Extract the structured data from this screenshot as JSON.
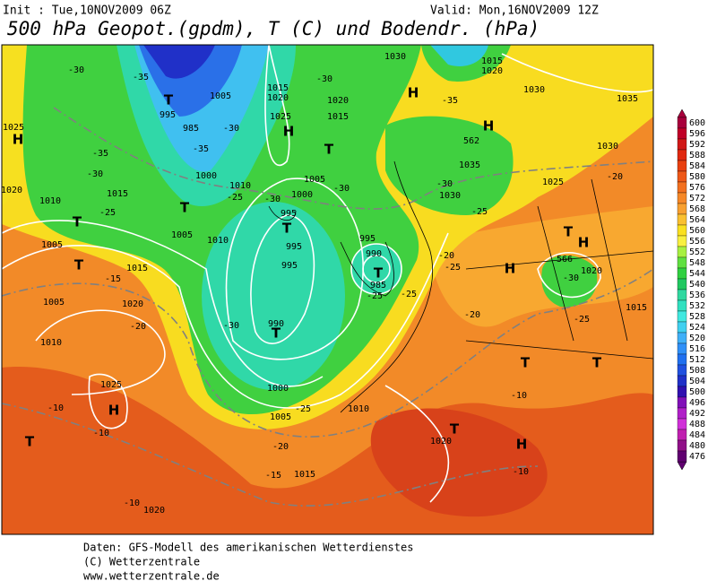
{
  "header": {
    "init": "Init : Tue,10NOV2009 06Z",
    "valid": "Valid: Mon,16NOV2009 12Z",
    "title": "500 hPa Geopot.(gpdm), T (C) und Bodendr. (hPa)"
  },
  "colorbar": {
    "levels": [
      600,
      596,
      592,
      588,
      584,
      580,
      576,
      572,
      568,
      564,
      560,
      556,
      552,
      548,
      544,
      540,
      536,
      532,
      528,
      524,
      520,
      516,
      512,
      508,
      504,
      500,
      496,
      492,
      488,
      484,
      480,
      476
    ],
    "colors": [
      "#a8003c",
      "#c00028",
      "#d01818",
      "#e02810",
      "#e84010",
      "#ee5818",
      "#f27020",
      "#f68828",
      "#f8a030",
      "#fac030",
      "#fae020",
      "#f8f040",
      "#a8f040",
      "#60e040",
      "#30d040",
      "#20c860",
      "#30d8a0",
      "#30e0c0",
      "#40e8e0",
      "#40d0f0",
      "#40b0f8",
      "#3090f8",
      "#2070f0",
      "#2050e0",
      "#2030c8",
      "#3010b0",
      "#8010b8",
      "#b020c8",
      "#d030d8",
      "#c020b0",
      "#901088",
      "#600070"
    ]
  },
  "map": {
    "labels": [
      "-30",
      "-35",
      "T",
      "995",
      "985",
      "-35",
      "1005",
      "-30",
      "1015",
      "1020",
      "1025",
      "H",
      "-30",
      "1020",
      "1015",
      "T",
      "1030",
      "H",
      "-35",
      "1015",
      "1020",
      "1030",
      "H",
      "562",
      "1035",
      "1030",
      "1035",
      "-30",
      "1030",
      "1025",
      "-20",
      "-25",
      "T",
      "H",
      "566",
      "1020",
      "-30",
      "-25",
      "1015",
      "H",
      "-20",
      "-25",
      "1025",
      "H",
      "-35",
      "-30",
      "1015",
      "1010",
      "-25",
      "T",
      "1020",
      "1005",
      "T",
      "1015",
      "-15",
      "1005",
      "1020",
      "1010",
      "-20",
      "T",
      "1005",
      "1010",
      "1000",
      "1010",
      "-25",
      "-30",
      "1005",
      "-30",
      "1000",
      "995",
      "T",
      "995",
      "995",
      "-30",
      "990",
      "T",
      "995",
      "990",
      "T",
      "985",
      "-25",
      "-25",
      "-20",
      "1000",
      "1005",
      "-25",
      "1010",
      "-20",
      "1025",
      "H",
      "-10",
      "-10",
      "T",
      "-15",
      "1015",
      "1020",
      "T",
      "H",
      "-10",
      "-10",
      "1020",
      "-10",
      "T",
      "T"
    ]
  },
  "footer": {
    "line1": "Daten: GFS-Modell des amerikanischen Wetterdienstes",
    "line2": "(C) Wetterzentrale",
    "line3": "www.wetterzentrale.de"
  }
}
